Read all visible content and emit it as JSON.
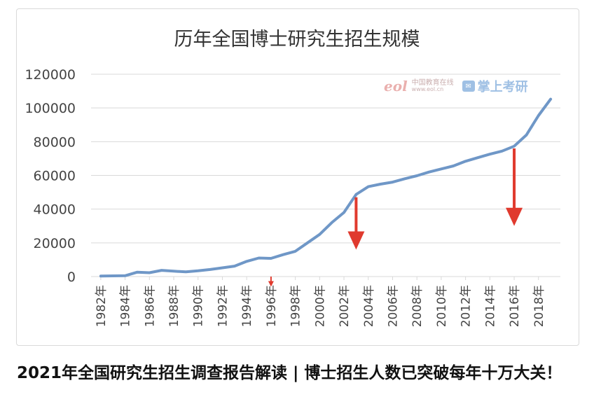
{
  "headline": "2021年全国研究生招生调查报告解读 | 博士招生人数已突破每年十万大关！",
  "watermark": {
    "logo": "eol",
    "site_cn": "中国教育在线",
    "site_url": "www.eol.cn",
    "brand": "掌上考研"
  },
  "colors": {
    "line": "#6f97c7",
    "arrow": "#e03a2e",
    "grid": "#d9d9d9",
    "axis_text": "#444444"
  },
  "chart_data": {
    "type": "line",
    "title": "历年全国博士研究生招生规模",
    "xlabel": "",
    "ylabel": "",
    "ylim": [
      0,
      120000
    ],
    "yticks": [
      0,
      20000,
      40000,
      60000,
      80000,
      100000,
      120000
    ],
    "ytick_labels": [
      "0",
      "20000",
      "40000",
      "60000",
      "80000",
      "100000",
      "120000"
    ],
    "xtick_labels": [
      "1982年",
      "1984年",
      "1986年",
      "1988年",
      "1990年",
      "1992年",
      "1994年",
      "1996年",
      "1998年",
      "2000年",
      "2002年",
      "2004年",
      "2006年",
      "2008年",
      "2010年",
      "2012年",
      "2014年",
      "2016年",
      "2018年"
    ],
    "grid": true,
    "legend": "none",
    "series": [
      {
        "x": [
          1982,
          1983,
          1984,
          1985,
          1986,
          1987,
          1988,
          1989,
          1990,
          1991,
          1992,
          1993,
          1994,
          1995,
          1996,
          1997,
          1998,
          1999,
          2000,
          2001,
          2002,
          2003,
          2004,
          2005,
          2006,
          2007,
          2008,
          2009,
          2010,
          2011,
          2012,
          2013,
          2014,
          2015,
          2016,
          2017,
          2018,
          2019
        ],
        "values": [
          300,
          400,
          500,
          2600,
          2300,
          3700,
          3200,
          2800,
          3400,
          4200,
          5200,
          6200,
          9000,
          11000,
          10800,
          13000,
          15000,
          20000,
          25000,
          32000,
          38000,
          48700,
          53300,
          54800,
          56000,
          58000,
          59800,
          62000,
          63800,
          65600,
          68400,
          70500,
          72600,
          74400,
          77300,
          83900,
          95500,
          105200
        ]
      }
    ],
    "annotations": [
      {
        "type": "arrow",
        "x": 1996,
        "y_from": 0,
        "y_to": -6000,
        "size": "small"
      },
      {
        "type": "arrow",
        "x": 2003,
        "y_from": 47000,
        "y_to": 16000,
        "size": "large"
      },
      {
        "type": "arrow",
        "x": 2016,
        "y_from": 76000,
        "y_to": 30000,
        "size": "large"
      }
    ]
  }
}
